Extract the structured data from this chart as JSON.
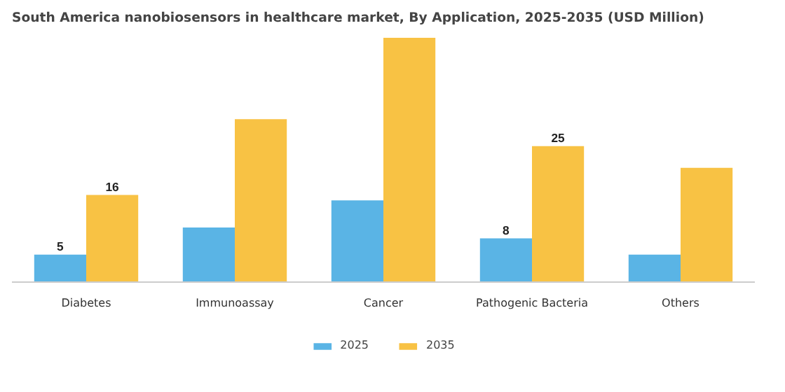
{
  "chart_data": {
    "type": "bar",
    "title": "South America nanobiosensors in healthcare market, By Application, 2025-2035 (USD Million)",
    "categories": [
      "Diabetes",
      "Immunoassay",
      "Cancer",
      "Pathogenic Bacteria",
      "Others"
    ],
    "series": [
      {
        "name": "2025",
        "color": "#5ab4e5",
        "values": [
          5,
          10,
          15,
          8,
          5
        ],
        "value_labels": [
          "5",
          null,
          null,
          "8",
          null
        ]
      },
      {
        "name": "2035",
        "color": "#f8c244",
        "values": [
          16,
          30,
          45,
          25,
          21
        ],
        "value_labels": [
          "16",
          null,
          null,
          "25",
          null
        ]
      }
    ],
    "legend": "bottom"
  }
}
